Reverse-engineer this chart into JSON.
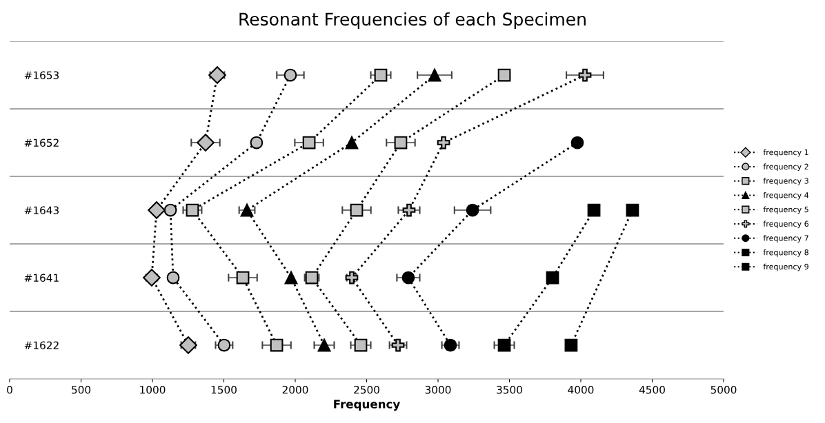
{
  "chart_data": {
    "type": "line",
    "title": "Resonant Frequencies of each Specimen",
    "xlabel": "Frequency",
    "orientation": "horizontal",
    "categories": [
      "#1653",
      "#1652",
      "#1643",
      "#1641",
      "#1622"
    ],
    "xlim": [
      0,
      5000
    ],
    "xticks": [
      0,
      500,
      1000,
      1500,
      2000,
      2500,
      3000,
      3500,
      4000,
      4500,
      5000
    ],
    "grid": "y",
    "legend": "right",
    "line_style": "dotted",
    "series": [
      {
        "name": "frequency 1",
        "color": "#c0c0c0",
        "marker": "diamond",
        "values": [
          1454,
          1372,
          1029,
          995,
          1251
        ],
        "errors": [
          50,
          100,
          null,
          40,
          50
        ]
      },
      {
        "name": "frequency 2",
        "color": "#c0c0c0",
        "marker": "circle",
        "values": [
          1966,
          1729,
          1126,
          1145,
          1502
        ],
        "errors": [
          95,
          null,
          null,
          null,
          60
        ]
      },
      {
        "name": "frequency 3",
        "color": "#c0c0c0",
        "marker": "square",
        "values": [
          2599,
          2097,
          1280,
          1633,
          1870
        ],
        "errors": [
          70,
          100,
          65,
          100,
          100
        ]
      },
      {
        "name": "frequency 4",
        "color": "#000000",
        "marker": "triangle",
        "values": [
          2976,
          2396,
          1662,
          1971,
          2203
        ],
        "errors": [
          120,
          null,
          55,
          null,
          70
        ]
      },
      {
        "name": "frequency 5",
        "color": "#c0c0c0",
        "marker": "square",
        "values": [
          3464,
          2739,
          2430,
          2116,
          2459
        ],
        "errors": [
          null,
          100,
          100,
          50,
          70
        ]
      },
      {
        "name": "frequency 6",
        "color": "#c0c0c0",
        "marker": "cross",
        "values": [
          4029,
          3039,
          2797,
          2396,
          2720
        ],
        "errors": [
          130,
          null,
          75,
          35,
          60
        ]
      },
      {
        "name": "frequency 7",
        "color": "#000000",
        "marker": "circle",
        "values": [
          null,
          3976,
          3242,
          2792,
          3087
        ],
        "errors": [
          null,
          null,
          127,
          80,
          60
        ]
      },
      {
        "name": "frequency 8",
        "color": "#000000",
        "marker": "square",
        "values": [
          null,
          null,
          4092,
          3802,
          3464
        ],
        "errors": [
          null,
          null,
          null,
          null,
          70
        ]
      },
      {
        "name": "frequency 9",
        "color": "#000000",
        "marker": "square",
        "values": [
          null,
          null,
          4362,
          null,
          3932
        ]
      }
    ]
  }
}
